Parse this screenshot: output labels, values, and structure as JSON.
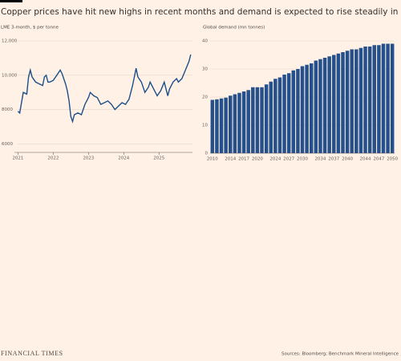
{
  "title": "Copper prices have hit new highs in recent months and demand is expected to rise steadily in decades to come",
  "source": "Sources: Bloomberg; Benchmark Mineral Intelligence",
  "brand": "FINANCIAL TIMES",
  "chart_data": [
    {
      "type": "line",
      "subtitle": "LME 3-month, $ per tonne",
      "color": "#1b4f8a",
      "grid": true,
      "x": [
        2021.0,
        2021.05,
        2021.1,
        2021.15,
        2021.25,
        2021.3,
        2021.35,
        2021.4,
        2021.5,
        2021.6,
        2021.7,
        2021.75,
        2021.8,
        2021.85,
        2021.9,
        2022.0,
        2022.1,
        2022.2,
        2022.25,
        2022.35,
        2022.4,
        2022.45,
        2022.5,
        2022.55,
        2022.6,
        2022.7,
        2022.8,
        2022.9,
        2023.0,
        2023.05,
        2023.15,
        2023.25,
        2023.35,
        2023.45,
        2023.55,
        2023.65,
        2023.75,
        2023.85,
        2023.95,
        2024.05,
        2024.15,
        2024.25,
        2024.35,
        2024.4,
        2024.5,
        2024.6,
        2024.7,
        2024.75,
        2024.85,
        2024.95,
        2025.05,
        2025.15,
        2025.25,
        2025.3,
        2025.4,
        2025.5,
        2025.55,
        2025.65,
        2025.75,
        2025.85,
        2025.9
      ],
      "values": [
        7900,
        7800,
        8400,
        9000,
        8900,
        9900,
        10300,
        9900,
        9600,
        9500,
        9400,
        9900,
        10000,
        9600,
        9600,
        9700,
        10000,
        10300,
        10100,
        9500,
        9100,
        8500,
        7600,
        7300,
        7700,
        7800,
        7700,
        8300,
        8700,
        9000,
        8800,
        8700,
        8300,
        8400,
        8500,
        8300,
        8000,
        8200,
        8400,
        8300,
        8600,
        9400,
        10400,
        9900,
        9600,
        9000,
        9300,
        9600,
        9200,
        8800,
        9100,
        9600,
        8800,
        9200,
        9600,
        9800,
        9600,
        9800,
        10300,
        10800,
        11200
      ],
      "xlim": [
        2020.9,
        2025.95
      ],
      "xticks": [
        2021,
        2022,
        2023,
        2024,
        2025
      ],
      "ylim": [
        5500,
        12000
      ],
      "yticks": [
        6000,
        8000,
        {
          "value": 10000,
          "label": "10,000"
        },
        {
          "value": 12000,
          "label": "12,000"
        }
      ]
    },
    {
      "type": "bar",
      "subtitle": "Global demand (mn tonnes)",
      "color": "#26508b",
      "grid": true,
      "categories": [
        "2010",
        null,
        null,
        null,
        "2014",
        null,
        null,
        "2017",
        null,
        null,
        "2020",
        null,
        null,
        null,
        "2024",
        null,
        null,
        "2027",
        null,
        null,
        "2030",
        null,
        null,
        null,
        "2034",
        null,
        null,
        "2037",
        null,
        null,
        "2040",
        null,
        null,
        null,
        "2044",
        null,
        null,
        "2047",
        null,
        null,
        "2050"
      ],
      "values": [
        19,
        19.2,
        19.5,
        19.8,
        20.5,
        21,
        21.5,
        22,
        22.5,
        23.5,
        23.5,
        23.5,
        24.5,
        25.5,
        26.5,
        27,
        28,
        28.5,
        29.5,
        30,
        31,
        31.5,
        32,
        33,
        33.5,
        34,
        34.5,
        35,
        35.5,
        36,
        36.5,
        37,
        37,
        37.5,
        38,
        38,
        38.5,
        38.5,
        39,
        39,
        39
      ],
      "ylim": [
        0,
        40
      ],
      "yticks": [
        0,
        10,
        20,
        30,
        40
      ]
    }
  ]
}
